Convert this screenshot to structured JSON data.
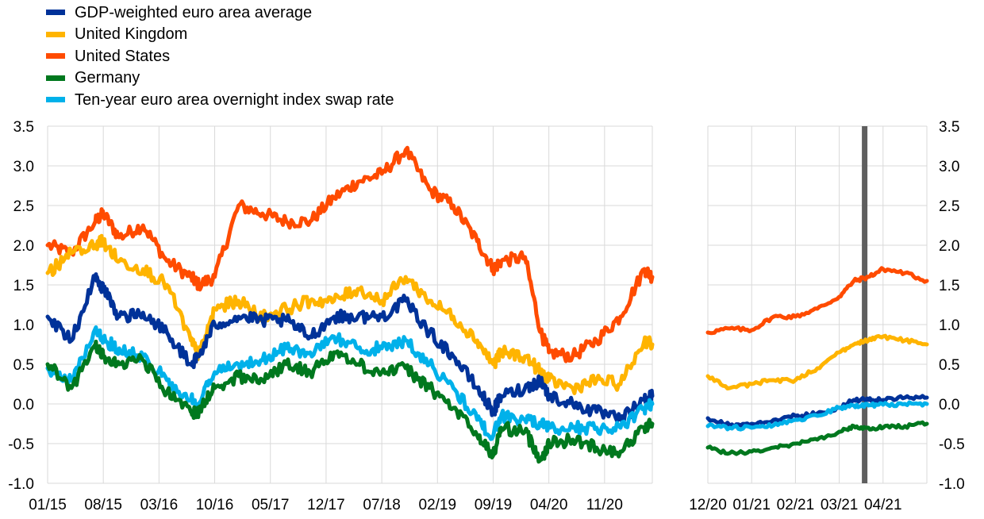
{
  "legend": [
    {
      "label": "GDP-weighted euro area average",
      "color": "#003299"
    },
    {
      "label": "United Kingdom",
      "color": "#FFB400"
    },
    {
      "label": "United States",
      "color": "#FF4B00"
    },
    {
      "label": "Germany",
      "color": "#00781E"
    },
    {
      "label": "Ten-year euro area overnight index swap rate",
      "color": "#00B1EA"
    }
  ],
  "chart_data": [
    {
      "type": "line",
      "panel": "left",
      "title": "",
      "xlabel": "",
      "ylabel": "",
      "ylim": [
        -1.0,
        3.5
      ],
      "y_ticks": [
        "-1.0",
        "-0.5",
        "0.0",
        "0.5",
        "1.0",
        "1.5",
        "2.0",
        "2.5",
        "3.0",
        "3.5"
      ],
      "x_ticks": [
        "01/15",
        "08/15",
        "03/16",
        "10/16",
        "05/17",
        "12/17",
        "07/18",
        "02/19",
        "09/19",
        "04/20",
        "11/20"
      ],
      "x_range": [
        "01/15",
        "05/21"
      ],
      "x_anchor_labels": [
        "01/15",
        "04/15",
        "07/15",
        "08/15",
        "10/15",
        "01/16",
        "04/16",
        "07/16",
        "08/16",
        "10/16",
        "01/17",
        "04/17",
        "07/17",
        "10/17",
        "01/18",
        "04/18",
        "07/18",
        "10/18",
        "01/19",
        "04/19",
        "07/19",
        "09/19",
        "10/19",
        "01/20",
        "03/20",
        "04/20",
        "07/20",
        "10/20",
        "01/21",
        "04/21",
        "05/21"
      ],
      "grid": true,
      "series": [
        {
          "name": "United States",
          "color": "#FF4B00",
          "values": [
            2.0,
            1.9,
            2.3,
            2.4,
            2.1,
            2.25,
            1.8,
            1.6,
            1.5,
            1.6,
            2.5,
            2.4,
            2.3,
            2.3,
            2.6,
            2.8,
            2.9,
            3.2,
            2.7,
            2.5,
            2.05,
            1.7,
            1.8,
            1.85,
            0.9,
            0.65,
            0.6,
            0.8,
            1.1,
            1.7,
            1.6
          ]
        },
        {
          "name": "United Kingdom",
          "color": "#FFB400",
          "values": [
            1.65,
            1.9,
            2.0,
            2.05,
            1.8,
            1.7,
            1.5,
            0.8,
            0.6,
            1.2,
            1.3,
            1.1,
            1.2,
            1.3,
            1.3,
            1.45,
            1.3,
            1.6,
            1.3,
            1.1,
            0.8,
            0.5,
            0.65,
            0.6,
            0.4,
            0.3,
            0.2,
            0.3,
            0.25,
            0.8,
            0.75
          ]
        },
        {
          "name": "GDP-weighted euro area average",
          "color": "#003299",
          "values": [
            1.1,
            0.8,
            1.6,
            1.45,
            1.1,
            1.15,
            0.9,
            0.5,
            0.6,
            1.0,
            1.1,
            1.05,
            1.05,
            0.85,
            1.1,
            1.1,
            1.1,
            1.3,
            0.9,
            0.6,
            0.2,
            -0.1,
            0.1,
            0.2,
            0.3,
            0.1,
            0.0,
            -0.1,
            -0.2,
            0.05,
            0.1
          ]
        },
        {
          "name": "Ten-year euro area overnight index swap rate",
          "color": "#00B1EA",
          "values": [
            0.45,
            0.3,
            0.95,
            0.8,
            0.7,
            0.6,
            0.3,
            0.05,
            0.0,
            0.4,
            0.5,
            0.55,
            0.7,
            0.65,
            0.85,
            0.7,
            0.7,
            0.8,
            0.5,
            0.2,
            -0.2,
            -0.4,
            -0.15,
            -0.2,
            -0.25,
            -0.3,
            -0.3,
            -0.3,
            -0.3,
            -0.05,
            0.0
          ]
        },
        {
          "name": "Germany",
          "color": "#00781E",
          "values": [
            0.5,
            0.2,
            0.75,
            0.6,
            0.5,
            0.55,
            0.15,
            -0.1,
            -0.1,
            0.2,
            0.35,
            0.3,
            0.5,
            0.4,
            0.65,
            0.5,
            0.4,
            0.45,
            0.2,
            -0.05,
            -0.4,
            -0.65,
            -0.3,
            -0.35,
            -0.7,
            -0.5,
            -0.45,
            -0.55,
            -0.6,
            -0.3,
            -0.25
          ]
        }
      ]
    },
    {
      "type": "line",
      "panel": "right",
      "title": "",
      "xlabel": "",
      "ylabel": "",
      "ylim": [
        -1.0,
        3.5
      ],
      "y_ticks": [
        "-1.0",
        "-0.5",
        "0.0",
        "0.5",
        "1.0",
        "1.5",
        "2.0",
        "2.5",
        "3.0",
        "3.5"
      ],
      "x_ticks": [
        "12/20",
        "01/21",
        "02/21",
        "03/21",
        "04/21"
      ],
      "x_range": [
        "12/20",
        "05/21"
      ],
      "x_anchor_labels": [
        "12/20",
        "12/20",
        "01/21",
        "01/21",
        "02/21",
        "02/21",
        "03/21",
        "03/21",
        "03/21",
        "04/21",
        "04/21",
        "05/21"
      ],
      "vertical_marker": "03/21",
      "grid": true,
      "series": [
        {
          "name": "United States",
          "color": "#FF4B00",
          "values": [
            0.9,
            0.95,
            0.93,
            1.1,
            1.1,
            1.2,
            1.35,
            1.55,
            1.6,
            1.7,
            1.65,
            1.55
          ]
        },
        {
          "name": "United Kingdom",
          "color": "#FFB400",
          "values": [
            0.35,
            0.2,
            0.25,
            0.3,
            0.3,
            0.45,
            0.65,
            0.75,
            0.8,
            0.85,
            0.8,
            0.75
          ]
        },
        {
          "name": "GDP-weighted euro area average",
          "color": "#003299",
          "values": [
            -0.18,
            -0.27,
            -0.25,
            -0.2,
            -0.15,
            -0.12,
            -0.05,
            0.05,
            0.05,
            0.05,
            0.08,
            0.08
          ]
        },
        {
          "name": "Ten-year euro area overnight index swap rate",
          "color": "#00B1EA",
          "values": [
            -0.28,
            -0.3,
            -0.3,
            -0.27,
            -0.2,
            -0.15,
            -0.05,
            -0.02,
            -0.02,
            -0.01,
            0.0,
            0.0
          ]
        },
        {
          "name": "Germany",
          "color": "#00781E",
          "values": [
            -0.55,
            -0.62,
            -0.6,
            -0.55,
            -0.5,
            -0.45,
            -0.35,
            -0.28,
            -0.3,
            -0.3,
            -0.28,
            -0.25
          ]
        }
      ]
    }
  ]
}
